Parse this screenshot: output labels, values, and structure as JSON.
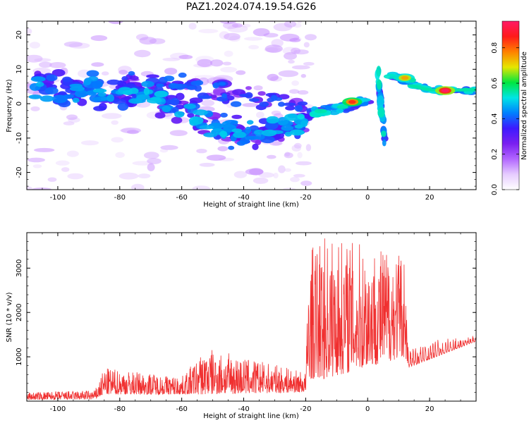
{
  "title": "PAZ1.2024.074.19.54.G26",
  "chart_data": [
    {
      "type": "heatmap",
      "xlabel": "Height of straight line (km)",
      "ylabel": "Frequency (Hz)",
      "xlim": [
        -110,
        35
      ],
      "ylim": [
        -25,
        24
      ],
      "xticks": [
        -100,
        -80,
        -60,
        -40,
        -20,
        0,
        20
      ],
      "yticks": [
        -20,
        -10,
        0,
        10,
        20
      ],
      "colorbar": {
        "label": "Normalized spectral amplitude",
        "range": [
          0,
          0.95
        ],
        "ticks": [
          0.0,
          0.2,
          0.4,
          0.6,
          0.8
        ],
        "colormap": [
          "#ffffff",
          "#e6ccff",
          "#b266ff",
          "#7a1ff0",
          "#3d1aff",
          "#0080ff",
          "#00e5e5",
          "#00e640",
          "#e6e600",
          "#ff8000",
          "#ff1a1a",
          "#ff1a66"
        ]
      },
      "features": [
        {
          "x": -85,
          "y": 1.5,
          "amp": 0.45
        },
        {
          "x": -47,
          "y": 5.8,
          "amp": 0.42
        },
        {
          "x": -5,
          "y": 0.5,
          "amp": 0.85
        },
        {
          "x": 12,
          "y": 7.5,
          "amp": 0.75
        },
        {
          "x": 25,
          "y": 3.8,
          "amp": 0.95
        }
      ]
    },
    {
      "type": "line",
      "xlabel": "Height of straight line (km)",
      "ylabel": "SNR (10 * v/v)",
      "xlim": [
        -110,
        35
      ],
      "ylim": [
        0,
        3800
      ],
      "xticks": [
        -100,
        -80,
        -60,
        -40,
        -20,
        0,
        20
      ],
      "yticks": [
        1000,
        2000,
        3000
      ],
      "line_color": "#f03030",
      "series_envelope": [
        {
          "x": -110,
          "low": 30,
          "high": 200
        },
        {
          "x": -88,
          "low": 40,
          "high": 250
        },
        {
          "x": -85,
          "low": 150,
          "high": 750
        },
        {
          "x": -60,
          "low": 150,
          "high": 550
        },
        {
          "x": -52,
          "low": 150,
          "high": 1200
        },
        {
          "x": -20,
          "low": 200,
          "high": 650
        },
        {
          "x": -19,
          "low": 500,
          "high": 3400
        },
        {
          "x": -14,
          "low": 500,
          "high": 3750
        },
        {
          "x": 12,
          "low": 1000,
          "high": 3400
        },
        {
          "x": 13,
          "low": 750,
          "high": 1300
        },
        {
          "x": 35,
          "low": 1350,
          "high": 1500
        }
      ]
    }
  ]
}
